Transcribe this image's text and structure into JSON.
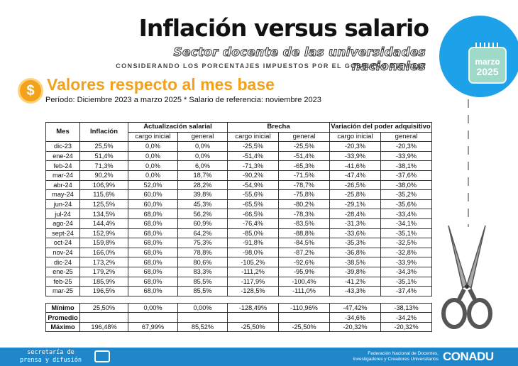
{
  "header": {
    "title": "Inflación versus salario",
    "subtitle": "Sector docente de las universidades nacionales",
    "tagline": "CONSIDERANDO LOS PORCENTAJES IMPUESTOS POR EL GOBIERNO DE MILEI"
  },
  "badge": {
    "month": "marzo",
    "year": "2025",
    "color": "#1da1e8"
  },
  "section": {
    "icon": "dollar-coin-icon",
    "symbol": "$",
    "title": "Valores respecto al mes base",
    "period": "Período: Diciembre 2023 a marzo 2025 * Salario de referencia: noviembre 2023"
  },
  "table": {
    "headers": {
      "mes": "Mes",
      "inflacion": "Inflación",
      "actualizacion": "Actualización salarial",
      "brecha": "Brecha",
      "variacion": "Variación del poder adquisitivo",
      "cargo_inicial": "cargo inicial",
      "general": "general"
    },
    "rows": [
      [
        "dic-23",
        "25,5%",
        "0,0%",
        "0,0%",
        "-25,5%",
        "-25,5%",
        "-20,3%",
        "-20,3%"
      ],
      [
        "ene-24",
        "51,4%",
        "0,0%",
        "0,0%",
        "-51,4%",
        "-51,4%",
        "-33,9%",
        "-33,9%"
      ],
      [
        "feb-24",
        "71,3%",
        "0,0%",
        "6,0%",
        "-71,3%",
        "-65,3%",
        "-41,6%",
        "-38,1%"
      ],
      [
        "mar-24",
        "90,2%",
        "0,0%",
        "18,7%",
        "-90,2%",
        "-71,5%",
        "-47,4%",
        "-37,6%"
      ],
      [
        "abr-24",
        "106,9%",
        "52,0%",
        "28,2%",
        "-54,9%",
        "-78,7%",
        "-26,5%",
        "-38,0%"
      ],
      [
        "may-24",
        "115,6%",
        "60,0%",
        "39,8%",
        "-55,6%",
        "-75,8%",
        "-25,8%",
        "-35,2%"
      ],
      [
        "jun-24",
        "125,5%",
        "60,0%",
        "45,3%",
        "-65,5%",
        "-80,2%",
        "-29,1%",
        "-35,6%"
      ],
      [
        "jul-24",
        "134,5%",
        "68,0%",
        "56,2%",
        "-66,5%",
        "-78,3%",
        "-28,4%",
        "-33,4%"
      ],
      [
        "ago-24",
        "144,4%",
        "68,0%",
        "60,9%",
        "-76,4%",
        "-83,5%",
        "-31,3%",
        "-34,1%"
      ],
      [
        "sept-24",
        "152,9%",
        "68,0%",
        "64,2%",
        "-85,0%",
        "-88,8%",
        "-33,6%",
        "-35,1%"
      ],
      [
        "oct-24",
        "159,8%",
        "68,0%",
        "75,3%",
        "-91,8%",
        "-84,5%",
        "-35,3%",
        "-32,5%"
      ],
      [
        "nov-24",
        "166,0%",
        "68,0%",
        "78,8%",
        "-98,0%",
        "-87,2%",
        "-36,8%",
        "-32,8%"
      ],
      [
        "dic-24",
        "173,2%",
        "68,0%",
        "80,6%",
        "-105,2%",
        "-92,6%",
        "-38,5%",
        "-33,9%"
      ],
      [
        "ene-25",
        "179,2%",
        "68,0%",
        "83,3%",
        "-111,2%",
        "-95,9%",
        "-39,8%",
        "-34,3%"
      ],
      [
        "feb-25",
        "185,9%",
        "68,0%",
        "85,5%",
        "-117,9%",
        "-100,4%",
        "-41,2%",
        "-35,1%"
      ],
      [
        "mar-25",
        "196,5%",
        "68,0%",
        "85,5%",
        "-128,5%",
        "-111,0%",
        "-43,3%",
        "-37,4%"
      ]
    ],
    "stats": [
      [
        "Mínimo",
        "25,50%",
        "0,00%",
        "0,00%",
        "-128,49%",
        "-110,96%",
        "-47,42%",
        "-38,13%"
      ],
      [
        "Promedio",
        "",
        "",
        "",
        "",
        "",
        "-34,6%",
        "-34,2%"
      ],
      [
        "Máximo",
        "196,48%",
        "67,99%",
        "85,52%",
        "-25,50%",
        "-25,50%",
        "-20,32%",
        "-20,32%"
      ]
    ]
  },
  "footer": {
    "left_line1": "secretaría de",
    "left_line2": "prensa y difusión",
    "right_line1": "Federación Nacional de Docentes,",
    "right_line2": "Investigadores y Creadores Universitarios",
    "brand": "CONADU"
  }
}
